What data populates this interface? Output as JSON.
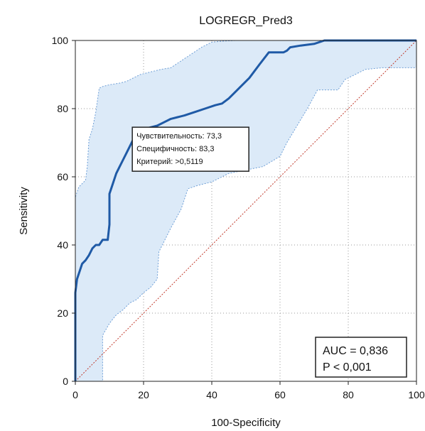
{
  "chart_data": {
    "type": "line",
    "title": "LOGREGR_Pred3",
    "xlabel": "100-Specificity",
    "ylabel": "Sensitivity",
    "xlim": [
      0,
      100
    ],
    "ylim": [
      0,
      100
    ],
    "xticks": [
      0,
      20,
      40,
      60,
      80,
      100
    ],
    "yticks": [
      0,
      20,
      40,
      60,
      80,
      100
    ],
    "x_tick_labels": [
      "0",
      "20",
      "40",
      "60",
      "80",
      "100"
    ],
    "y_tick_labels": [
      "0",
      "20",
      "40",
      "60",
      "80",
      "100"
    ],
    "grid": true,
    "colors": {
      "roc_line": "#1f5aa6",
      "ci_band_fill": "#dceaf8",
      "ci_band_edge": "#6f9fd6",
      "reference_line": "#c0392b",
      "grid": "#9a9a9a"
    },
    "series": [
      {
        "x": [
          0,
          0,
          0.5,
          2,
          3,
          4,
          5,
          6,
          7,
          8,
          9.5,
          10,
          10,
          11,
          12,
          13,
          14,
          15,
          16,
          17,
          18,
          19,
          20,
          22,
          24,
          26,
          28,
          30,
          32,
          35,
          38,
          41,
          43,
          45,
          48,
          51,
          54,
          56.7,
          58,
          60,
          61,
          62,
          63,
          66,
          70,
          73,
          76,
          80,
          85,
          90,
          95,
          100
        ],
        "y": [
          0,
          26,
          30,
          34.5,
          35.5,
          37,
          39,
          40,
          40,
          41.5,
          41.5,
          46,
          55,
          58,
          61,
          63,
          65,
          67,
          69,
          71,
          73.3,
          73.5,
          74,
          74.5,
          75,
          76,
          77,
          77.5,
          78,
          79,
          80,
          81,
          81.5,
          83,
          86,
          89,
          93,
          96.5,
          96.5,
          96.5,
          96.5,
          97,
          98,
          98.5,
          99,
          100,
          100,
          100,
          100,
          100,
          100,
          100
        ]
      },
      {
        "x": [
          0,
          0,
          1,
          2,
          3,
          3.5,
          4,
          5,
          6,
          6.7,
          7,
          8,
          10,
          13,
          15,
          17,
          19,
          21,
          23,
          25,
          28,
          31,
          34,
          37,
          40,
          43,
          47,
          55,
          62,
          66,
          70,
          75,
          80,
          85,
          90,
          100
        ],
        "y": [
          0,
          54,
          57,
          58,
          59,
          63,
          71,
          74,
          79,
          84,
          86,
          86.5,
          87,
          87.5,
          88,
          89,
          90,
          90.5,
          91,
          91.5,
          92,
          94,
          96,
          98,
          99.5,
          99.8,
          100,
          100,
          100,
          100,
          100,
          100,
          100,
          100,
          100,
          100
        ]
      },
      {
        "x": [
          0,
          8,
          8,
          10,
          12,
          14,
          16,
          18,
          20,
          22,
          24,
          24.5,
          26,
          28,
          31,
          33,
          36,
          40,
          45,
          55,
          60,
          62,
          65,
          68,
          71,
          73,
          77,
          79,
          82,
          85,
          90,
          95,
          100
        ],
        "y": [
          0,
          0,
          13.5,
          17,
          19.5,
          21,
          23,
          24,
          26,
          27.5,
          30,
          38,
          41,
          45,
          50.5,
          56.5,
          57.5,
          58.5,
          61,
          63,
          66,
          70,
          75,
          80,
          85.5,
          85.5,
          85.5,
          88.5,
          90,
          91.5,
          92,
          92,
          92
        ]
      },
      {
        "x": [
          0,
          100
        ],
        "y": [
          0,
          100
        ]
      }
    ],
    "annotation": {
      "lines": [
        "Чувствительность: 73,3",
        "Специфичность: 83,3",
        "Критерий: >0,5119"
      ],
      "x": 16.7,
      "y": 73.3
    },
    "stats": {
      "auc": "AUC = 0,836",
      "p": "P < 0,001"
    }
  }
}
